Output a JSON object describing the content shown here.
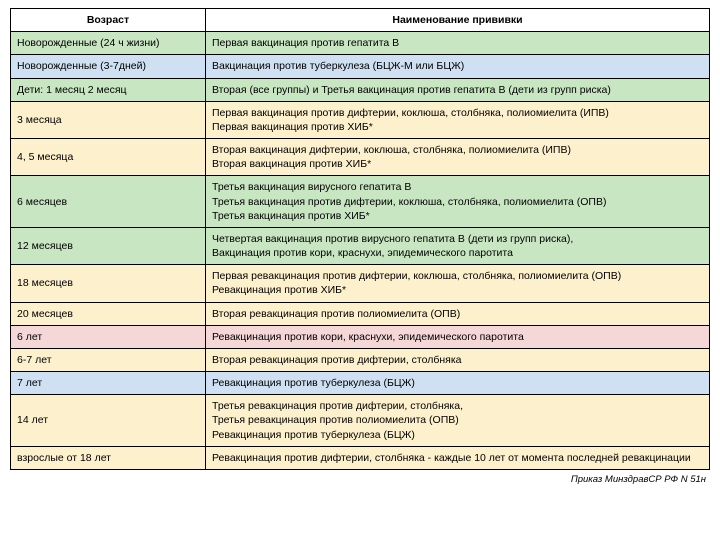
{
  "headers": {
    "age": "Возраст",
    "vaccine": "Наименование прививки"
  },
  "colors": {
    "green": "#c9e6c3",
    "blue": "#cfe0f2",
    "yellow": "#fdf0cd",
    "pink": "#f5d7d7",
    "white": "#ffffff"
  },
  "rows": [
    {
      "color": "green",
      "age": "Новорожденные (24 ч жизни)",
      "lines": [
        "Первая вакцинация против гепатита В"
      ]
    },
    {
      "color": "blue",
      "age": "Новорожденные   (3-7дней)",
      "lines": [
        "Вакцинация против туберкулеза (БЦЖ-М или БЦЖ)"
      ]
    },
    {
      "color": "green",
      "age": "Дети:  1 месяц      2 месяц",
      "lines": [
        "Вторая (все группы) и Третья вакцинация против гепатита В   (дети из групп риска)"
      ]
    },
    {
      "color": "yellow",
      "age": "3 месяца",
      "lines": [
        "Первая вакцинация против дифтерии, коклюша, столбняка, полиомиелита (ИПВ)",
        "Первая вакцинация против ХИБ*"
      ]
    },
    {
      "color": "yellow",
      "age": "4, 5 месяца",
      "lines": [
        "Вторая вакцинация дифтерии, коклюша, столбняка, полиомиелита (ИПВ)",
        "Вторая вакцинация против ХИБ*"
      ]
    },
    {
      "color": "green",
      "age": "6 месяцев",
      "lines": [
        "Третья вакцинация вирусного гепатита В",
        "Третья вакцинация против дифтерии, коклюша, столбняка, полиомиелита (ОПВ)",
        "Третья вакцинация против ХИБ*"
      ]
    },
    {
      "color": "green",
      "age": "12 месяцев",
      "lines": [
        "Четвертая вакцинация против вирусного гепатита В (дети из групп риска),",
        "Вакцинация против кори, краснухи, эпидемического паротита"
      ]
    },
    {
      "color": "yellow",
      "age": "18 месяцев",
      "lines": [
        "Первая ревакцинация против дифтерии, коклюша, столбняка, полиомиелита (ОПВ)",
        "Ревакцинация против ХИБ*"
      ]
    },
    {
      "color": "yellow",
      "age": "20 месяцев",
      "lines": [
        "Вторая ревакцинация против полиомиелита (ОПВ)"
      ]
    },
    {
      "color": "pink",
      "age": "6 лет",
      "lines": [
        "Ревакцинация против кори, краснухи, эпидемического паротита"
      ]
    },
    {
      "color": "yellow",
      "age": "6-7 лет",
      "lines": [
        "Вторая ревакцинация против дифтерии,  столбняка"
      ]
    },
    {
      "color": "blue",
      "age": "7 лет",
      "lines": [
        "Ревакцинация против туберкулеза (БЦЖ)"
      ]
    },
    {
      "color": "yellow",
      "age": "14 лет",
      "lines": [
        "Третья ревакцинация против дифтерии, столбняка,",
        "Третья ревакцинация против полиомиелита (ОПВ)",
        "Ревакцинация против туберкулеза (БЦЖ)"
      ]
    },
    {
      "color": "yellow",
      "age": "взрослые от 18 лет",
      "lines": [
        "Ревакцинация против дифтерии, столбняка - каждые 10 лет от момента последней ревакцинации"
      ]
    }
  ],
  "footnote": "Приказ МинздравСР РФ N 51н"
}
